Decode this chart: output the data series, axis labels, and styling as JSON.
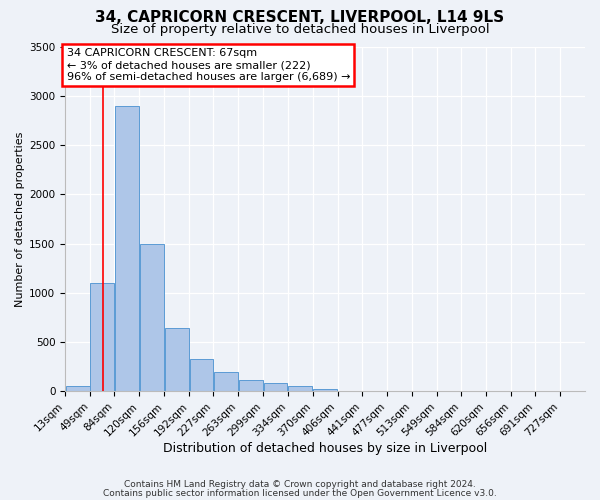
{
  "title": "34, CAPRICORN CRESCENT, LIVERPOOL, L14 9LS",
  "subtitle": "Size of property relative to detached houses in Liverpool",
  "xlabel": "Distribution of detached houses by size in Liverpool",
  "ylabel": "Number of detached properties",
  "bar_labels": [
    "13sqm",
    "49sqm",
    "84sqm",
    "120sqm",
    "156sqm",
    "192sqm",
    "227sqm",
    "263sqm",
    "299sqm",
    "334sqm",
    "370sqm",
    "406sqm",
    "441sqm",
    "477sqm",
    "513sqm",
    "549sqm",
    "584sqm",
    "620sqm",
    "656sqm",
    "691sqm",
    "727sqm"
  ],
  "bar_values": [
    50,
    1100,
    2900,
    1500,
    640,
    325,
    200,
    110,
    80,
    50,
    20,
    5,
    5,
    2,
    0,
    0,
    0,
    0,
    0,
    0,
    0
  ],
  "bar_color": "#aec6e8",
  "bar_edge_color": "#5b9bd5",
  "annotation_box_text": "34 CAPRICORN CRESCENT: 67sqm\n← 3% of detached houses are smaller (222)\n96% of semi-detached houses are larger (6,689) →",
  "annotation_box_color": "white",
  "annotation_box_edge_color": "red",
  "red_line_x": 67,
  "ylim": [
    0,
    3500
  ],
  "yticks": [
    0,
    500,
    1000,
    1500,
    2000,
    2500,
    3000,
    3500
  ],
  "bin_edges": [
    13,
    49,
    84,
    120,
    156,
    192,
    227,
    263,
    299,
    334,
    370,
    406,
    441,
    477,
    513,
    549,
    584,
    620,
    656,
    691,
    727,
    763
  ],
  "footer_line1": "Contains HM Land Registry data © Crown copyright and database right 2024.",
  "footer_line2": "Contains public sector information licensed under the Open Government Licence v3.0.",
  "bg_color": "#eef2f8",
  "plot_bg_color": "#eef2f8",
  "grid_color": "white",
  "title_fontsize": 11,
  "subtitle_fontsize": 9.5,
  "xlabel_fontsize": 9,
  "ylabel_fontsize": 8,
  "tick_fontsize": 7.5,
  "footer_fontsize": 6.5
}
